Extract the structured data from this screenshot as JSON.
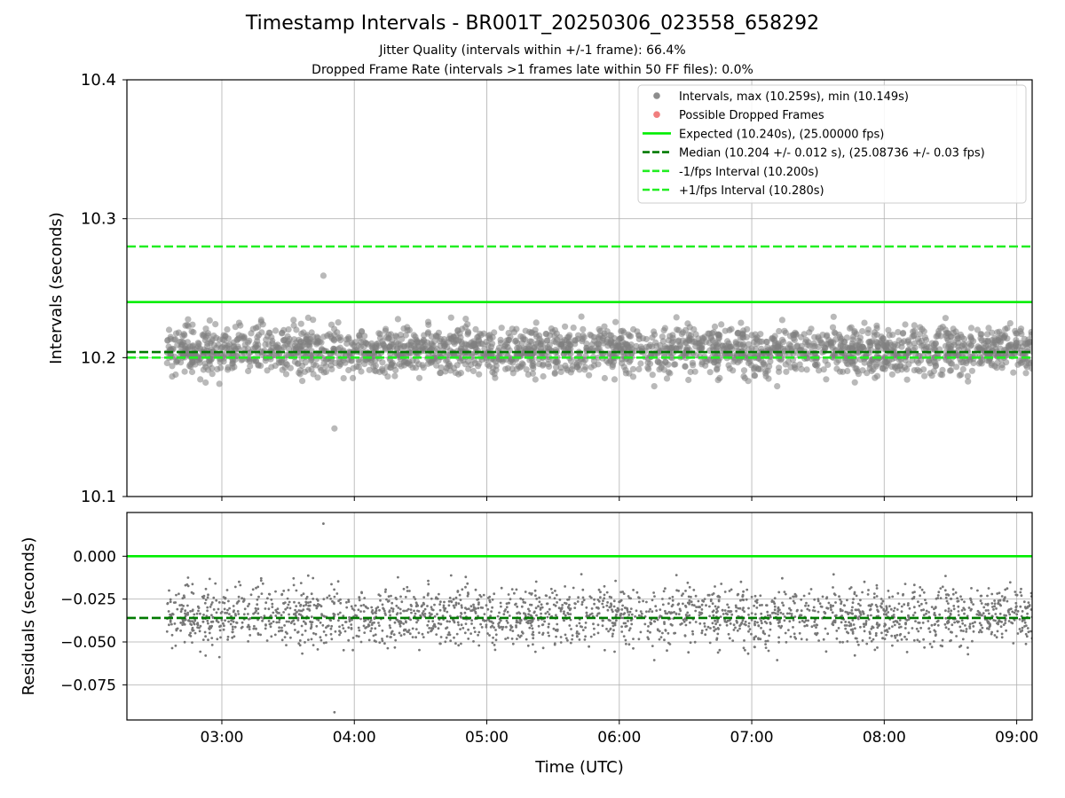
{
  "title": "Timestamp Intervals - BR001T_20250306_023558_658292",
  "subtitle_1": "Jitter Quality (intervals within +/-1 frame): 66.4%",
  "subtitle_2": "Dropped Frame Rate (intervals >1 frames late within 50 FF files): 0.0%",
  "chart_data": [
    {
      "type": "scatter",
      "panel": "intervals",
      "xlabel": "",
      "ylabel": "Intervals (seconds)",
      "xlim": [
        "02:17",
        "09:07"
      ],
      "ylim": [
        10.1,
        10.4
      ],
      "yticks": [
        "10.1",
        "10.2",
        "10.3",
        "10.4"
      ],
      "grid": true,
      "legend_position": "top-right",
      "series": [
        {
          "name": "Intervals, max (10.259s), min (10.149s)",
          "kind": "points",
          "color": "#808080",
          "x_range": [
            "02:35",
            "09:07"
          ],
          "points_count": 2300,
          "center": 10.205,
          "spread": 0.012,
          "min": 10.149,
          "max": 10.259
        },
        {
          "name": "Possible Dropped Frames",
          "kind": "points",
          "color": "#f07070",
          "points_count": 0
        },
        {
          "name": "Expected (10.240s), (25.00000 fps)",
          "kind": "hline",
          "y": 10.24,
          "color": "#00ee00",
          "style": "solid"
        },
        {
          "name": "Median (10.204 +/- 0.012 s), (25.08736 +/- 0.03 fps)",
          "kind": "hline",
          "y": 10.204,
          "color": "#007a00",
          "style": "dashed"
        },
        {
          "name": "-1/fps Interval (10.200s)",
          "kind": "hline",
          "y": 10.2,
          "color": "#22ee22",
          "style": "dashed"
        },
        {
          "name": "+1/fps Interval (10.280s)",
          "kind": "hline",
          "y": 10.28,
          "color": "#22ee22",
          "style": "dashed"
        }
      ]
    },
    {
      "type": "scatter",
      "panel": "residuals",
      "xlabel": "Time (UTC)",
      "ylabel": "Residuals (seconds)",
      "xlim": [
        "02:17",
        "09:07"
      ],
      "xticks": [
        "03:00",
        "04:00",
        "05:00",
        "06:00",
        "07:00",
        "08:00",
        "09:00"
      ],
      "ylim": [
        -0.0955,
        0.0255
      ],
      "yticks": [
        "0.000",
        "−0.025",
        "−0.050",
        "−0.075"
      ],
      "grid": true,
      "series": [
        {
          "kind": "points",
          "color": "#777777",
          "derived_from": "intervals",
          "offset": -10.24
        },
        {
          "kind": "hline",
          "y": 0.0,
          "color": "#00ee00",
          "style": "solid"
        },
        {
          "kind": "hline",
          "y": -0.036,
          "color": "#007a00",
          "style": "dashed"
        }
      ]
    }
  ]
}
